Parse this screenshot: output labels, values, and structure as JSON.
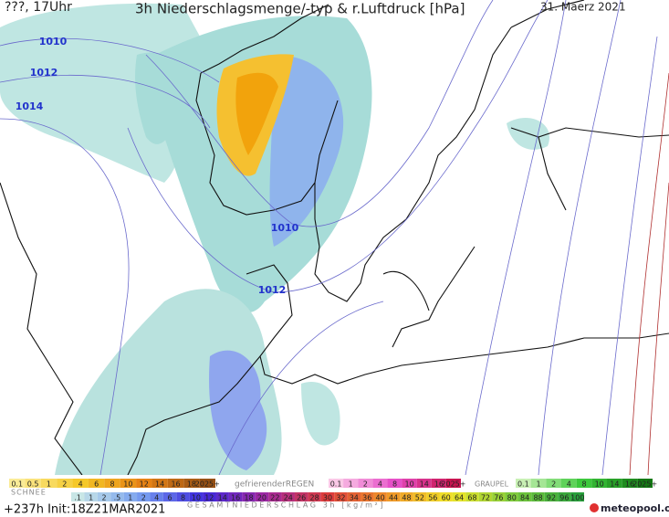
{
  "header": {
    "valid": "???, 17Uhr",
    "title": "3h Niederschlagsmenge/-typ & r.Luftdruck [hPa]",
    "date": "31. Maerz 2021"
  },
  "isobar_labels": [
    "1010",
    "1012",
    "1014",
    "1010",
    "1012"
  ],
  "legend": {
    "snow": {
      "label": "SCHNEE",
      "ticks": [
        "0.1",
        "0.5",
        "1",
        "2",
        "4",
        "6",
        "8",
        "10",
        "12",
        "14",
        "16",
        "18",
        "2025+"
      ]
    },
    "freezing_rain": {
      "label": "gefrierenderREGEN",
      "ticks": [
        "0.1",
        "1",
        "2",
        "4",
        "8",
        "10",
        "14",
        "16",
        "2025+"
      ]
    },
    "graupel": {
      "label": "GRAUPEL",
      "ticks": [
        "0.1",
        "1",
        "2",
        "4",
        "8",
        "10",
        "14",
        "16",
        "2025+"
      ]
    },
    "total": {
      "label": "GESAMTNIEDERSCHLAG 3h [kg/m²]",
      "ticks": [
        ".1",
        "1",
        "2",
        ".5",
        "1",
        "2",
        "4",
        "6",
        "8",
        "10",
        "12",
        "14",
        "16",
        "18",
        "20",
        "22",
        "24",
        "26",
        "28",
        "30",
        "32",
        "34",
        "36",
        "40",
        "44",
        "48",
        "52",
        "56",
        "60",
        "64",
        "68",
        "72",
        "76",
        "80",
        "84",
        "88",
        "92",
        "96",
        "100"
      ]
    }
  },
  "footer": {
    "run": "+237h Init:18Z21MAR2021",
    "brand": "meteopool.org"
  }
}
